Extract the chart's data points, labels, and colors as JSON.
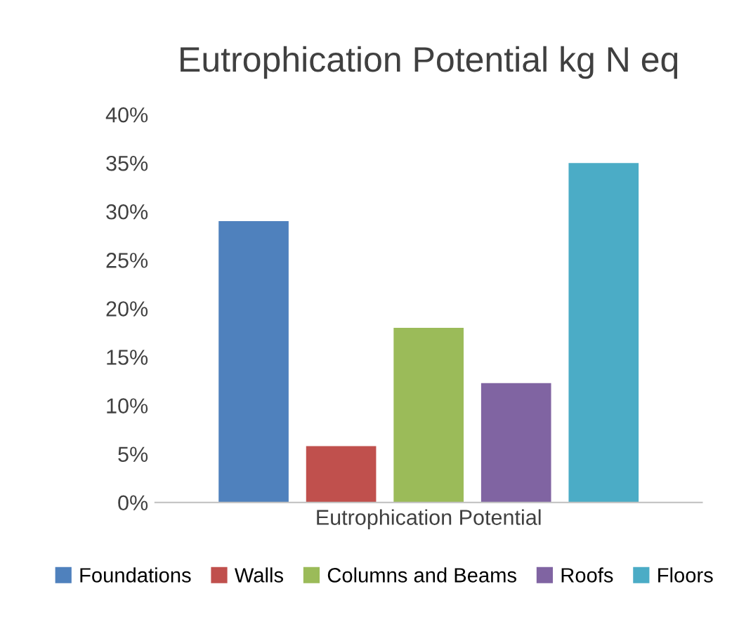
{
  "chart_data": {
    "type": "bar",
    "title": "Eutrophication Potential kg N eq",
    "categories": [
      "Eutrophication Potential"
    ],
    "series": [
      {
        "name": "Foundations",
        "color": "#4f81bd",
        "values": [
          29
        ]
      },
      {
        "name": "Walls",
        "color": "#c0504d",
        "values": [
          5.8
        ]
      },
      {
        "name": "Columns and Beams",
        "color": "#9bbb59",
        "values": [
          18
        ]
      },
      {
        "name": "Roofs",
        "color": "#8064a2",
        "values": [
          12.3
        ]
      },
      {
        "name": "Floors",
        "color": "#4bacc6",
        "values": [
          35
        ]
      }
    ],
    "ylim": [
      0,
      40
    ],
    "yticks": [
      {
        "value": 0,
        "label": "0%"
      },
      {
        "value": 5,
        "label": "5%"
      },
      {
        "value": 10,
        "label": "10%"
      },
      {
        "value": 15,
        "label": "15%"
      },
      {
        "value": 20,
        "label": "20%"
      },
      {
        "value": 25,
        "label": "25%"
      },
      {
        "value": 30,
        "label": "30%"
      },
      {
        "value": 35,
        "label": "35%"
      },
      {
        "value": 40,
        "label": "40%"
      }
    ],
    "grid": false,
    "legend": "bottom"
  }
}
